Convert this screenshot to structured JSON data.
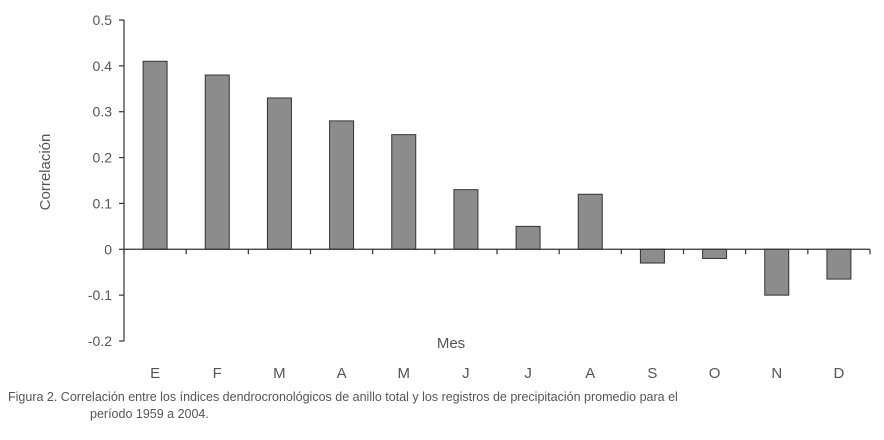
{
  "chart_data": {
    "type": "bar",
    "categories": [
      "E",
      "F",
      "M",
      "A",
      "M",
      "J",
      "J",
      "A",
      "S",
      "O",
      "N",
      "D"
    ],
    "values": [
      0.41,
      0.38,
      0.33,
      0.28,
      0.25,
      0.13,
      0.05,
      0.12,
      -0.03,
      -0.02,
      -0.1,
      -0.065
    ],
    "title": "",
    "xlabel": "Mes",
    "ylabel": "Correlación",
    "ylim": [
      -0.2,
      0.5
    ],
    "yticks": [
      "0.5",
      "0.4",
      "0.3",
      "0.2",
      "0.1",
      "0",
      "-0.1",
      "-0.2"
    ],
    "ytick_values": [
      0.5,
      0.4,
      0.3,
      0.2,
      0.1,
      0,
      -0.1,
      -0.2
    ],
    "grid": false,
    "legend": "none",
    "bar_color": "#8c8c8c",
    "bar_stroke": "#333333"
  },
  "caption": {
    "line1": "Figura 2. Correlación entre los índices dendrocronológicos de anillo total y los registros de precipitación promedio para el",
    "line2": "período 1959 a 2004."
  }
}
